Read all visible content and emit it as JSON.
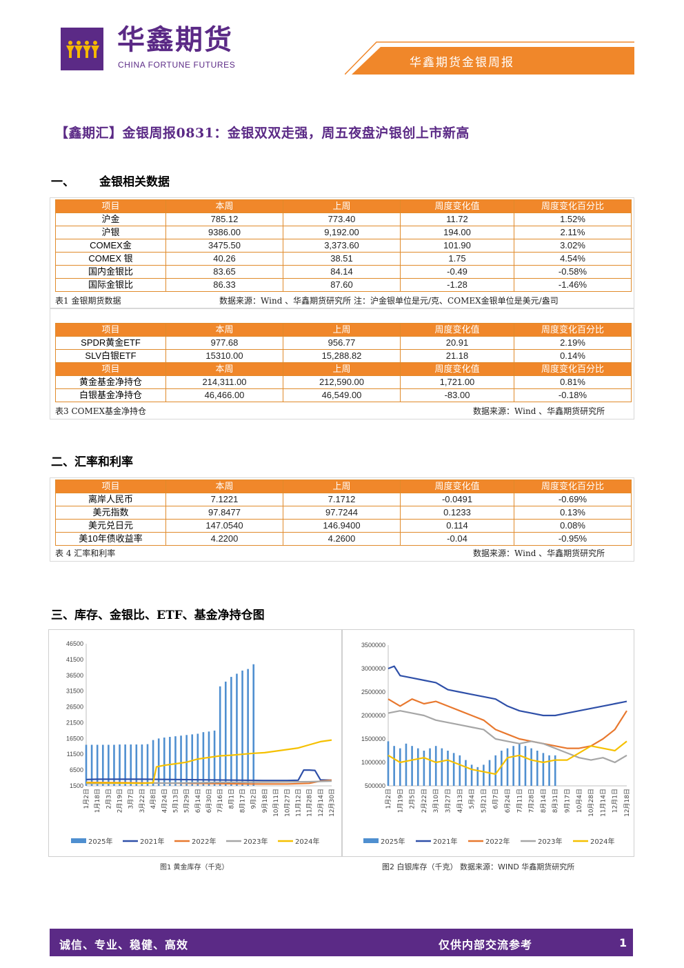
{
  "header": {
    "brand_cn": "华鑫期货",
    "brand_en": "CHINA FORTUNE FUTURES",
    "report_title": "华鑫期货金银周报",
    "brand_color": "#5b2a86",
    "accent_color": "#f0872a"
  },
  "title": "【鑫期汇】金银周报0831：金银双双走强，周五夜盘沪银创上市新高",
  "section1": {
    "heading_num": "一、",
    "heading": "金银相关数据",
    "table1": {
      "headers": [
        "项目",
        "本周",
        "上周",
        "周度变化值",
        "周度变化百分比"
      ],
      "rows": [
        [
          "沪金",
          "785.12",
          "773.40",
          "11.72",
          "1.52%"
        ],
        [
          "沪银",
          "9386.00",
          "9,192.00",
          "194.00",
          "2.11%"
        ],
        [
          "COMEX金",
          "3475.50",
          "3,373.60",
          "101.90",
          "3.02%"
        ],
        [
          "COMEX 银",
          "40.26",
          "38.51",
          "1.75",
          "4.54%"
        ],
        [
          "国内金银比",
          "83.65",
          "84.14",
          "-0.49",
          "-0.58%"
        ],
        [
          "国际金银比",
          "86.33",
          "87.60",
          "-1.28",
          "-1.46%"
        ]
      ],
      "caption_left": "表1  金银期货数据",
      "caption_right": "数据来源：Wind 、华鑫期货研究所  注：沪金银单位是元/克、COMEX金银单位是美元/盎司"
    },
    "table2": {
      "headers": [
        "项目",
        "本周",
        "上周",
        "周度变化值",
        "周度变化百分比"
      ],
      "rows": [
        [
          "SPDR黄金ETF",
          "977.68",
          "956.77",
          "20.91",
          "2.19%"
        ],
        [
          "SLV白银ETF",
          "15310.00",
          "15,288.82",
          "21.18",
          "0.14%"
        ]
      ],
      "headers2": [
        "项目",
        "本周",
        "上周",
        "周度变化值",
        "周度变化百分比"
      ],
      "rows2": [
        [
          "黄金基金净持仓",
          "214,311.00",
          "212,590.00",
          "1,721.00",
          "0.81%"
        ],
        [
          "白银基金净持仓",
          "46,466.00",
          "46,549.00",
          "-83.00",
          "-0.18%"
        ]
      ],
      "caption_left": "表3  COMEX基金净持仓",
      "caption_right": "数据来源：Wind 、华鑫期货研究所"
    }
  },
  "section2": {
    "heading": "二、汇率和利率",
    "table": {
      "headers": [
        "项目",
        "本周",
        "上周",
        "周度变化值",
        "周度变化百分比"
      ],
      "rows": [
        [
          "离岸人民币",
          "7.1221",
          "7.1712",
          "-0.0491",
          "-0.69%"
        ],
        [
          "美元指数",
          "97.8477",
          "97.7244",
          "0.1233",
          "0.13%"
        ],
        [
          "美元兑日元",
          "147.0540",
          "146.9400",
          "0.114",
          "0.08%"
        ],
        [
          "美10年债收益率",
          "4.2200",
          "4.2600",
          "-0.04",
          "-0.95%"
        ]
      ],
      "caption_left": "表 4 汇率和利率",
      "caption_right": "数据来源：Wind 、华鑫期货研究所"
    }
  },
  "section3": {
    "heading": "三、库存、金银比、ETF、基金净持仓图"
  },
  "chart_data": [
    {
      "type": "line",
      "caption": "图1 黄金库存（千克）",
      "ylim": [
        1500,
        46500
      ],
      "yticks": [
        "46500",
        "41500",
        "36500",
        "31500",
        "26500",
        "21500",
        "16500",
        "11500",
        "6500",
        "1500"
      ],
      "x_labels": [
        "1月2日",
        "1月18日",
        "2月3日",
        "2月19日",
        "3月7日",
        "3月22日",
        "4月8日",
        "4月24日",
        "5月13日",
        "5月29日",
        "6月14日",
        "6月30日",
        "7月16日",
        "8月1日",
        "8月17日",
        "9月2日",
        "9月18日",
        "10月11日",
        "10月27日",
        "11月12日",
        "11月28日",
        "12月14日",
        "12月30日"
      ],
      "legend": [
        "2025年",
        "2021年",
        "2022年",
        "2023年",
        "2024年"
      ],
      "colors": [
        "#4f8fd0",
        "#2e4fa8",
        "#e8782e",
        "#a6a6a6",
        "#f5c000"
      ],
      "series": [
        {
          "name": "2025年",
          "kind": "bar",
          "x": [
            0,
            0.5,
            1,
            1.5,
            2,
            2.5,
            3,
            3.5,
            4,
            4.5,
            5,
            5.5,
            6,
            6.5,
            7,
            7.5,
            8,
            8.5,
            9,
            9.5,
            10,
            10.5,
            11,
            11.5,
            12,
            12.5,
            13,
            13.5,
            14,
            14.5,
            15
          ],
          "values": [
            14500,
            14500,
            14500,
            14500,
            14500,
            14500,
            14600,
            14600,
            14600,
            14600,
            14600,
            14700,
            16000,
            16500,
            16800,
            17000,
            17200,
            17400,
            17600,
            17800,
            18000,
            18500,
            18700,
            19000,
            33000,
            34500,
            36000,
            37000,
            38000,
            38500,
            40000
          ]
        },
        {
          "name": "2021年",
          "kind": "line",
          "x": [
            0,
            1,
            3,
            5,
            8,
            11,
            14,
            16,
            18,
            19,
            19.5,
            20,
            20.5,
            21,
            22
          ],
          "values": [
            3500,
            3600,
            3600,
            3600,
            3500,
            3400,
            3300,
            3200,
            3200,
            3300,
            6500,
            6500,
            6400,
            3400,
            3300
          ]
        },
        {
          "name": "2022年",
          "kind": "line",
          "x": [
            0,
            3,
            6,
            9,
            12,
            15,
            18,
            19,
            20,
            21,
            22
          ],
          "values": [
            2600,
            2500,
            2400,
            2300,
            2200,
            2100,
            2100,
            2200,
            2300,
            3000,
            3300
          ]
        },
        {
          "name": "2023年",
          "kind": "line",
          "x": [
            0,
            4,
            8,
            12,
            16,
            20,
            22
          ],
          "values": [
            2200,
            2300,
            2400,
            2600,
            2700,
            2800,
            3000
          ]
        },
        {
          "name": "2024年",
          "kind": "line",
          "x": [
            0,
            3,
            5,
            6,
            6.3,
            7,
            8,
            9,
            10,
            11,
            12,
            13,
            14,
            15,
            16,
            17,
            18,
            19,
            20,
            21,
            22
          ],
          "values": [
            2500,
            2400,
            2300,
            2500,
            7500,
            8000,
            8500,
            9000,
            10000,
            10500,
            11000,
            11200,
            11500,
            11800,
            12000,
            12500,
            13000,
            13500,
            14500,
            15500,
            16000
          ]
        }
      ]
    },
    {
      "type": "line",
      "caption": "图2 白银库存（千克）  数据来源：WIND 华鑫期货研究所",
      "ylim": [
        500000,
        3500000
      ],
      "yticks": [
        "3500000",
        "3000000",
        "2500000",
        "2000000",
        "1500000",
        "1000000",
        "500000"
      ],
      "x_labels": [
        "1月2日",
        "1月19日",
        "2月5日",
        "2月22日",
        "3月10日",
        "3月27日",
        "4月13日",
        "5月4日",
        "5月21日",
        "6月7日",
        "6月24日",
        "7月11日",
        "7月28日",
        "8月14日",
        "8月31日",
        "9月17日",
        "10月4日",
        "10月28日",
        "11月14日",
        "12月1日",
        "12月18日"
      ],
      "legend": [
        "2025年",
        "2021年",
        "2022年",
        "2023年",
        "2024年"
      ],
      "colors": [
        "#4f8fd0",
        "#2e4fa8",
        "#e8782e",
        "#a6a6a6",
        "#f5c000"
      ],
      "series": [
        {
          "name": "2025年",
          "kind": "bar",
          "x": [
            0,
            0.5,
            1,
            1.5,
            2,
            2.5,
            3,
            3.5,
            4,
            4.5,
            5,
            5.5,
            6,
            6.5,
            7,
            7.5,
            8,
            8.5,
            9,
            9.5,
            10,
            10.5,
            11,
            11.5,
            12,
            12.5,
            13,
            13.5,
            14
          ],
          "values": [
            1450000,
            1350000,
            1300000,
            1400000,
            1350000,
            1300000,
            1250000,
            1300000,
            1350000,
            1300000,
            1250000,
            1200000,
            1150000,
            1050000,
            950000,
            900000,
            950000,
            1050000,
            1150000,
            1250000,
            1300000,
            1350000,
            1400000,
            1350000,
            1300000,
            1250000,
            1200000,
            1150000,
            1150000
          ]
        },
        {
          "name": "2021年",
          "kind": "line",
          "x": [
            0,
            0.5,
            1,
            2,
            3,
            4,
            5,
            6,
            7,
            8,
            9,
            10,
            11,
            12,
            13,
            14,
            15,
            16,
            17,
            18,
            19,
            20
          ],
          "values": [
            3000000,
            3050000,
            2850000,
            2800000,
            2750000,
            2700000,
            2550000,
            2500000,
            2450000,
            2400000,
            2350000,
            2200000,
            2100000,
            2050000,
            2000000,
            2000000,
            2050000,
            2100000,
            2150000,
            2200000,
            2250000,
            2300000
          ]
        },
        {
          "name": "2022年",
          "kind": "line",
          "x": [
            0,
            1,
            2,
            3,
            4,
            5,
            6,
            7,
            8,
            9,
            10,
            11,
            12,
            13,
            14,
            15,
            16,
            17,
            18,
            19,
            20
          ],
          "values": [
            2350000,
            2200000,
            2350000,
            2250000,
            2300000,
            2200000,
            2100000,
            2000000,
            1900000,
            1700000,
            1600000,
            1500000,
            1450000,
            1400000,
            1350000,
            1300000,
            1300000,
            1350000,
            1500000,
            1700000,
            2100000
          ]
        },
        {
          "name": "2023年",
          "kind": "line",
          "x": [
            0,
            1,
            2,
            3,
            4,
            5,
            6,
            7,
            8,
            9,
            10,
            11,
            12,
            13,
            14,
            15,
            16,
            17,
            18,
            19,
            20
          ],
          "values": [
            2050000,
            2100000,
            2050000,
            2000000,
            1900000,
            1850000,
            1800000,
            1750000,
            1700000,
            1500000,
            1450000,
            1400000,
            1450000,
            1400000,
            1300000,
            1200000,
            1100000,
            1050000,
            1100000,
            1000000,
            1150000
          ]
        },
        {
          "name": "2024年",
          "kind": "line",
          "x": [
            0,
            1,
            2,
            3,
            4,
            5,
            6,
            7,
            8,
            9,
            10,
            11,
            12,
            13,
            14,
            15,
            16,
            17,
            18,
            19,
            20
          ],
          "values": [
            1150000,
            1000000,
            1050000,
            1100000,
            1000000,
            1050000,
            950000,
            850000,
            800000,
            750000,
            1100000,
            1150000,
            1050000,
            1000000,
            1050000,
            1050000,
            1200000,
            1350000,
            1300000,
            1250000,
            1450000
          ]
        }
      ]
    }
  ],
  "footer": {
    "left": "诚信、专业、稳健、高效",
    "right": "仅供内部交流参考",
    "page": "1"
  }
}
